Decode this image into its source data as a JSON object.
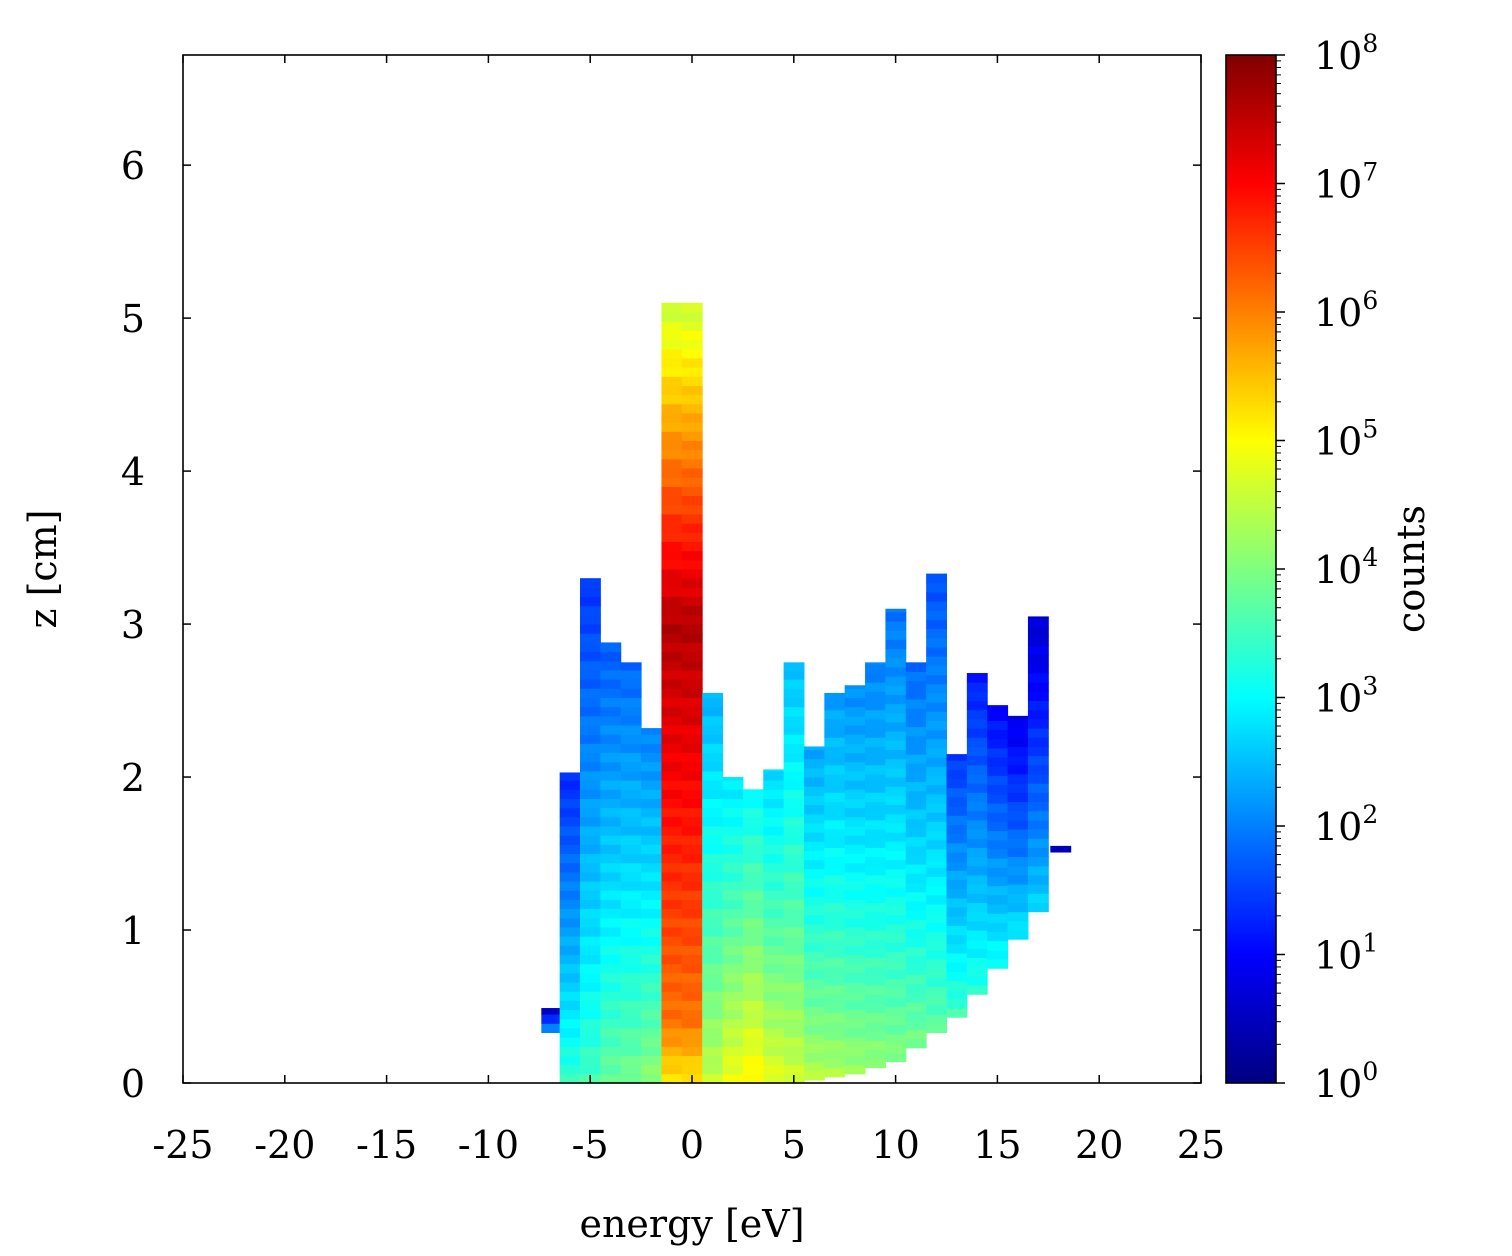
{
  "chart_data": {
    "type": "heatmap",
    "xlabel": "energy [eV]",
    "ylabel": "z [cm]",
    "xlim": [
      -25,
      25
    ],
    "ylim": [
      0,
      6.72
    ],
    "x_ticks": [
      "-25",
      "-20",
      "-15",
      "-10",
      "-5",
      "0",
      "5",
      "10",
      "15",
      "20",
      "25"
    ],
    "x_tick_values": [
      -25,
      -20,
      -15,
      -10,
      -5,
      0,
      5,
      10,
      15,
      20,
      25
    ],
    "y_ticks": [
      "0",
      "1",
      "2",
      "3",
      "4",
      "5",
      "6"
    ],
    "y_tick_values": [
      0,
      1,
      2,
      3,
      4,
      5,
      6
    ],
    "colorbar": {
      "label": "counts",
      "scale": "log",
      "range": [
        1,
        100000000
      ],
      "tick_base": "10",
      "tick_exponents": [
        "0",
        "1",
        "2",
        "3",
        "4",
        "5",
        "6",
        "7",
        "8"
      ],
      "colormap": "jet"
    },
    "bin_width_ev": 1.0,
    "columns": [
      {
        "x": -6.9,
        "z_top": 0.49,
        "z_bottom": 0.33,
        "peak_log": 2.6
      },
      {
        "x": -6.0,
        "z_top": 2.03,
        "z_bottom": 0.0,
        "peak_log": 3.5
      },
      {
        "x": -5.0,
        "z_top": 3.3,
        "z_bottom": 0.0,
        "peak_log": 3.6
      },
      {
        "x": -4.0,
        "z_top": 2.88,
        "z_bottom": 0.0,
        "peak_log": 3.9
      },
      {
        "x": -3.0,
        "z_top": 2.75,
        "z_bottom": 0.0,
        "peak_log": 4.0
      },
      {
        "x": -2.0,
        "z_top": 2.32,
        "z_bottom": 0.0,
        "peak_log": 4.2
      },
      {
        "x": -1.0,
        "z_top": 5.1,
        "z_bottom": 0.0,
        "peak_log": 7.6,
        "mode": "spike"
      },
      {
        "x": 0.0,
        "z_top": 5.1,
        "z_bottom": 0.0,
        "peak_log": 7.6,
        "mode": "spike"
      },
      {
        "x": 1.0,
        "z_top": 2.55,
        "z_bottom": 0.0,
        "peak_log": 4.6
      },
      {
        "x": 2.0,
        "z_top": 2.0,
        "z_bottom": 0.0,
        "peak_log": 5.0
      },
      {
        "x": 3.0,
        "z_top": 1.92,
        "z_bottom": 0.0,
        "peak_log": 5.2
      },
      {
        "x": 4.0,
        "z_top": 2.05,
        "z_bottom": 0.0,
        "peak_log": 4.9
      },
      {
        "x": 5.0,
        "z_top": 2.75,
        "z_bottom": 0.0,
        "peak_log": 4.7
      },
      {
        "x": 6.0,
        "z_top": 2.2,
        "z_bottom": 0.02,
        "peak_log": 4.5
      },
      {
        "x": 7.0,
        "z_top": 2.55,
        "z_bottom": 0.04,
        "peak_log": 4.4
      },
      {
        "x": 8.0,
        "z_top": 2.6,
        "z_bottom": 0.06,
        "peak_log": 4.3
      },
      {
        "x": 9.0,
        "z_top": 2.75,
        "z_bottom": 0.1,
        "peak_log": 4.2
      },
      {
        "x": 10.0,
        "z_top": 3.1,
        "z_bottom": 0.14,
        "peak_log": 4.1
      },
      {
        "x": 11.0,
        "z_top": 2.75,
        "z_bottom": 0.23,
        "peak_log": 4.0
      },
      {
        "x": 12.0,
        "z_top": 3.33,
        "z_bottom": 0.33,
        "peak_log": 3.8
      },
      {
        "x": 13.0,
        "z_top": 2.15,
        "z_bottom": 0.43,
        "peak_log": 3.6
      },
      {
        "x": 14.0,
        "z_top": 2.68,
        "z_bottom": 0.58,
        "peak_log": 3.4
      },
      {
        "x": 15.0,
        "z_top": 2.47,
        "z_bottom": 0.75,
        "peak_log": 3.2
      },
      {
        "x": 16.0,
        "z_top": 2.4,
        "z_bottom": 0.94,
        "peak_log": 3.0
      },
      {
        "x": 17.0,
        "z_top": 3.05,
        "z_bottom": 1.12,
        "peak_log": 2.8
      },
      {
        "x": 18.1,
        "z_top": 1.55,
        "z_bottom": 1.51,
        "peak_log": 1.7
      }
    ],
    "grid": false
  }
}
